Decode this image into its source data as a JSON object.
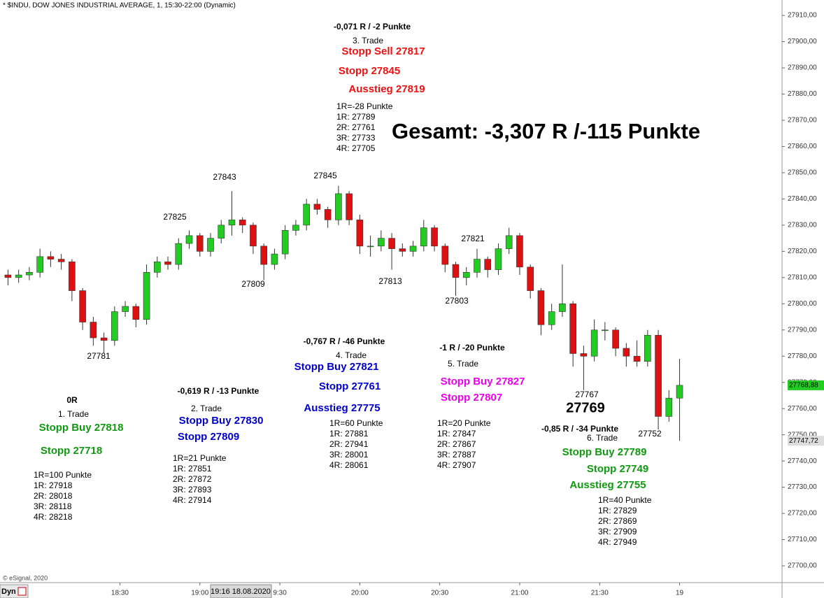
{
  "chart_data": {
    "type": "candlestick",
    "title": "* $INDU, DOW JONES INDUSTRIAL AVERAGE, 1, 15:30-22:00 (Dynamic)",
    "source": "© eSignal, 2020",
    "mode_label": "Dyn",
    "cursor_label": "19:16 18.08.2020",
    "up_color": "#22cc22",
    "down_color": "#dd1111",
    "x": [
      "17:48",
      "17:52",
      "17:56",
      "18:00",
      "18:04",
      "18:08",
      "18:12",
      "18:16",
      "18:20",
      "18:24",
      "18:28",
      "18:32",
      "18:36",
      "18:40",
      "18:44",
      "18:48",
      "18:52",
      "18:56",
      "19:00",
      "19:04",
      "19:08",
      "19:12",
      "19:16",
      "19:20",
      "19:24",
      "19:28",
      "19:32",
      "19:36",
      "19:40",
      "19:44",
      "19:48",
      "19:52",
      "19:56",
      "20:00",
      "20:04",
      "20:08",
      "20:12",
      "20:16",
      "20:20",
      "20:24",
      "20:28",
      "20:32",
      "20:36",
      "20:40",
      "20:44",
      "20:48",
      "20:52",
      "20:56",
      "21:00",
      "21:04",
      "21:08",
      "21:12",
      "21:16",
      "21:20",
      "21:24",
      "21:28",
      "21:32",
      "21:36",
      "21:40",
      "21:44",
      "21:48",
      "21:52",
      "21:56",
      "22:00"
    ],
    "open": [
      27811,
      27810,
      27811,
      27812,
      27818,
      27817,
      27816,
      27805,
      27793,
      27787,
      27786,
      27797,
      27799,
      27794,
      27812,
      27816,
      27815,
      27823,
      27826,
      27820,
      27825,
      27830,
      27832,
      27830,
      27822,
      27815,
      27819,
      27828,
      27830,
      27838,
      27836,
      27832,
      27842,
      27832,
      27822,
      27822,
      27825,
      27821,
      27820,
      27822,
      27829,
      27822,
      27815,
      27810,
      27812,
      27817,
      27813,
      27821,
      27826,
      27814,
      27805,
      27792,
      27797,
      27800,
      27781,
      27780,
      27790,
      27790,
      27783,
      27780,
      27778,
      27788,
      27757,
      27764
    ],
    "high": [
      27813,
      27813,
      27814,
      27821,
      27820,
      27819,
      27817,
      27806,
      27795,
      27789,
      27799,
      27801,
      27800,
      27815,
      27818,
      27818,
      27825,
      27828,
      27827,
      27827,
      27832,
      27843,
      27833,
      27831,
      27823,
      27821,
      27830,
      27832,
      27840,
      27840,
      27837,
      27845,
      27843,
      27834,
      27826,
      27828,
      27827,
      27823,
      27824,
      27832,
      27830,
      27823,
      27816,
      27814,
      27821,
      27818,
      27823,
      27829,
      27827,
      27815,
      27806,
      27800,
      27815,
      27801,
      27784,
      27794,
      27793,
      27791,
      27785,
      27786,
      27790,
      27790,
      27767,
      27779
    ],
    "low": [
      27807,
      27808,
      27809,
      27810,
      27814,
      27813,
      27801,
      27790,
      27784,
      27781,
      27784,
      27795,
      27791,
      27792,
      27810,
      27813,
      27813,
      27821,
      27818,
      27818,
      27823,
      27826,
      27827,
      27819,
      27809,
      27813,
      27817,
      27826,
      27828,
      27834,
      27829,
      27830,
      27830,
      27819,
      27818,
      27820,
      27813,
      27818,
      27818,
      27820,
      27820,
      27812,
      27803,
      27807,
      27810,
      27810,
      27811,
      27819,
      27811,
      27802,
      27788,
      27790,
      27795,
      27776,
      27767,
      27778,
      27786,
      27780,
      27776,
      27776,
      27776,
      27752,
      27755,
      27747.72
    ],
    "close": [
      27810,
      27811,
      27812,
      27818,
      27817,
      27816,
      27805,
      27793,
      27787,
      27786,
      27797,
      27799,
      27794,
      27812,
      27816,
      27815,
      27823,
      27826,
      27820,
      27825,
      27830,
      27832,
      27830,
      27822,
      27815,
      27819,
      27828,
      27830,
      27838,
      27836,
      27832,
      27842,
      27832,
      27822,
      27822,
      27825,
      27821,
      27820,
      27822,
      27829,
      27822,
      27815,
      27810,
      27812,
      27817,
      27813,
      27821,
      27826,
      27814,
      27805,
      27792,
      27797,
      27800,
      27781,
      27780,
      27790,
      27790,
      27783,
      27780,
      27778,
      27788,
      27757,
      27764,
      27768.88
    ],
    "ylim": [
      27693.6,
      27915.9
    ],
    "xticks": [
      "18:30",
      "19:00",
      {
        "value": "19:30",
        "label": "9:30"
      },
      "20:00",
      "20:30",
      "21:00",
      "21:30",
      {
        "value": "22:00",
        "label": "19"
      }
    ],
    "yticks": [
      {
        "value": 27700,
        "label": "27700,00"
      },
      {
        "value": 27710,
        "label": "27710,00"
      },
      {
        "value": 27720,
        "label": "27720,00"
      },
      {
        "value": 27730,
        "label": "27730,00"
      },
      {
        "value": 27740,
        "label": "27740,00"
      },
      {
        "value": 27750,
        "label": "27750,00"
      },
      {
        "value": 27760,
        "label": "27760,00"
      },
      {
        "value": 27770,
        "label": "27770,00"
      },
      {
        "value": 27780,
        "label": "27780,00"
      },
      {
        "value": 27790,
        "label": "27790,00"
      },
      {
        "value": 27800,
        "label": "27800,00"
      },
      {
        "value": 27810,
        "label": "27810,00"
      },
      {
        "value": 27820,
        "label": "27820,00"
      },
      {
        "value": 27830,
        "label": "27830,00"
      },
      {
        "value": 27840,
        "label": "27840,00"
      },
      {
        "value": 27850,
        "label": "27850,00"
      },
      {
        "value": 27860,
        "label": "27860,00"
      },
      {
        "value": 27870,
        "label": "27870,00"
      },
      {
        "value": 27880,
        "label": "27880,00"
      },
      {
        "value": 27890,
        "label": "27890,00"
      },
      {
        "value": 27900,
        "label": "27900,00"
      },
      {
        "value": 27910,
        "label": "27910,00"
      }
    ],
    "price_tags": [
      {
        "value": 27768.88,
        "label": "27768,88",
        "color": "#22cc22"
      },
      {
        "value": 27747.72,
        "label": "27747,72",
        "color": "#dddddd"
      }
    ],
    "annotations": [
      "27781",
      "27825",
      "27843",
      "27809",
      "27845",
      "27813",
      "27803",
      "27821",
      "27767",
      "27752",
      "27769",
      "Gesamt: -3,307 R /-115 Punkte",
      "-0,071 R / -2 Punkte",
      "3. Trade",
      "Stopp Sell 27817",
      "Stopp 27845",
      "Ausstieg 27819",
      "1R=-28 Punkte",
      "1R: 27789",
      "2R: 27761",
      "3R: 27733",
      "4R: 27705",
      "0R",
      "1. Trade",
      "Stopp Buy 27818",
      "Stopp 27718",
      "1R=100 Punkte",
      "1R: 27918",
      "2R: 28018",
      "3R: 28118",
      "4R: 28218",
      "-0,619 R / -13 Punkte",
      "2. Trade",
      "Stopp Buy 27830",
      "Stopp 27809",
      "1R=21 Punkte",
      "1R: 27851",
      "2R: 27872",
      "3R: 27893",
      "4R: 27914",
      "-0,767 R / -46 Punkte",
      "4. Trade",
      "Stopp Buy 27821",
      "Stopp 27761",
      "Ausstieg 27775",
      "1R=60 Punkte",
      "1R: 27881",
      "2R: 27941",
      "3R: 28001",
      "4R: 28061",
      "-1 R / -20 Punkte",
      "5. Trade",
      "Stopp Buy 27827",
      "Stopp 27807",
      "1R=20 Punkte",
      "1R: 27847",
      "2R: 27867",
      "3R: 27887",
      "4R: 27907",
      "-0,85 R / -34 Punkte",
      "6. Trade",
      "Stopp Buy 27789",
      "Stopp 27749",
      "Ausstieg 27755",
      "1R=40 Punkte",
      "1R: 27829",
      "2R: 27869",
      "3R: 27909",
      "4R: 27949"
    ]
  }
}
